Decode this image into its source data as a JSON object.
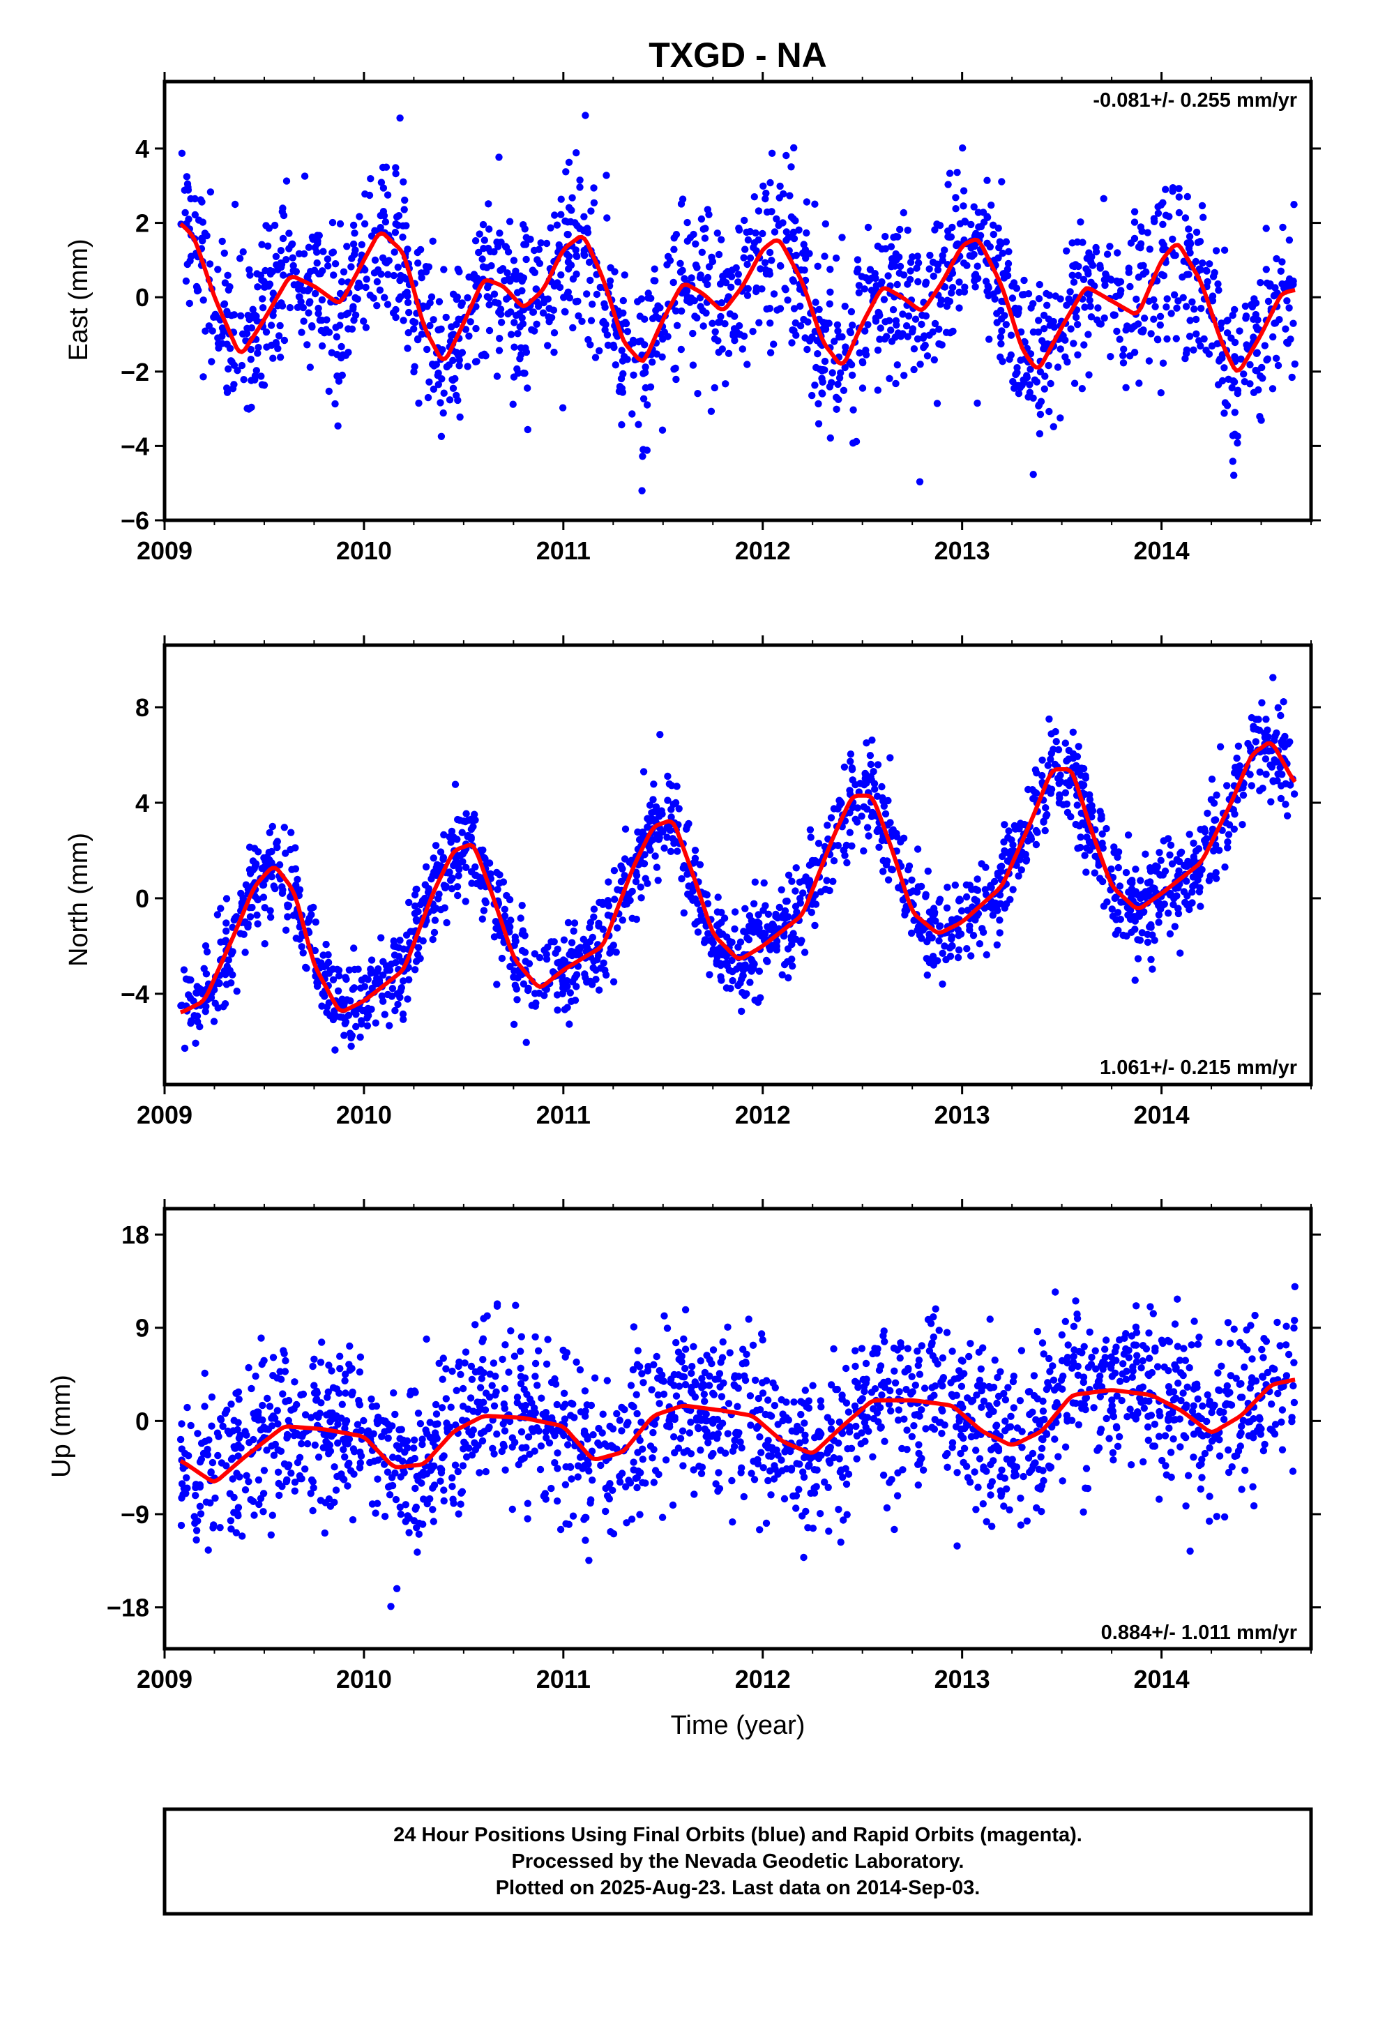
{
  "title": "TXGD - NA",
  "xlabel": "Time (year)",
  "footer": {
    "line1": "24 Hour Positions Using Final Orbits (blue) and Rapid Orbits (magenta).",
    "line2": "Processed by the Nevada Geodetic Laboratory.",
    "line3": "Plotted on 2025-Aug-23. Last data on 2014-Sep-03."
  },
  "colors": {
    "points": "#0000ff",
    "fit": "#ff0000",
    "frame": "#000000"
  },
  "chart_data": [
    {
      "type": "scatter",
      "ylabel": "East (mm)",
      "rate": "-0.081+/- 0.255 mm/yr",
      "rate_position": "top-right",
      "xlim": [
        2009.0,
        2014.75
      ],
      "ylim": [
        -6,
        5.8
      ],
      "x_ticks": [
        "2009",
        "2010",
        "2011",
        "2012",
        "2013",
        "2014"
      ],
      "y_ticks": [
        "−6",
        "−4",
        "−2",
        "0",
        "2",
        "4"
      ],
      "y_tick_values": [
        -6,
        -4,
        -2,
        0,
        2,
        4
      ],
      "series": [
        {
          "kind": "fit",
          "x": [
            2009.08,
            2009.15,
            2009.25,
            2009.38,
            2009.5,
            2009.63,
            2009.75,
            2009.88,
            2010.0,
            2010.08,
            2010.2,
            2010.3,
            2010.4,
            2010.5,
            2010.6,
            2010.7,
            2010.8,
            2010.9,
            2011.0,
            2011.1,
            2011.2,
            2011.3,
            2011.4,
            2011.5,
            2011.6,
            2011.7,
            2011.8,
            2011.9,
            2012.0,
            2012.08,
            2012.2,
            2012.3,
            2012.4,
            2012.5,
            2012.6,
            2012.7,
            2012.8,
            2012.9,
            2013.0,
            2013.08,
            2013.2,
            2013.3,
            2013.38,
            2013.5,
            2013.62,
            2013.75,
            2013.88,
            2014.0,
            2014.08,
            2014.2,
            2014.3,
            2014.38,
            2014.5,
            2014.6,
            2014.67
          ],
          "y": [
            2.0,
            1.6,
            0.0,
            -1.6,
            -0.6,
            0.6,
            0.3,
            -0.2,
            1.0,
            1.8,
            1.2,
            -0.8,
            -1.8,
            -0.7,
            0.5,
            0.3,
            -0.3,
            0.2,
            1.3,
            1.7,
            0.5,
            -1.2,
            -1.8,
            -0.6,
            0.4,
            0.1,
            -0.4,
            0.3,
            1.3,
            1.6,
            0.4,
            -1.2,
            -1.9,
            -0.7,
            0.3,
            0.0,
            -0.4,
            0.4,
            1.4,
            1.6,
            0.3,
            -1.4,
            -2.0,
            -0.8,
            0.3,
            -0.1,
            -0.5,
            1.0,
            1.5,
            0.4,
            -1.2,
            -2.1,
            -1.0,
            0.1,
            0.2
          ]
        }
      ],
      "points": {
        "count": 1900,
        "annual_amplitude": 1.6,
        "semiannual_amplitude": 0.9,
        "rate": -0.081,
        "scatter_mm": 1.1
      }
    },
    {
      "type": "scatter",
      "ylabel": "North (mm)",
      "rate": "1.061+/- 0.215 mm/yr",
      "rate_position": "bottom-right",
      "xlim": [
        2009.0,
        2014.75
      ],
      "ylim": [
        -7.8,
        10.6
      ],
      "x_ticks": [
        "2009",
        "2010",
        "2011",
        "2012",
        "2013",
        "2014"
      ],
      "y_ticks": [
        "−4",
        "0",
        "4",
        "8"
      ],
      "y_tick_values": [
        -4,
        0,
        4,
        8
      ],
      "series": [
        {
          "kind": "fit",
          "x": [
            2009.08,
            2009.2,
            2009.35,
            2009.45,
            2009.55,
            2009.65,
            2009.75,
            2009.88,
            2010.0,
            2010.2,
            2010.35,
            2010.45,
            2010.55,
            2010.65,
            2010.75,
            2010.88,
            2011.0,
            2011.2,
            2011.35,
            2011.45,
            2011.55,
            2011.65,
            2011.75,
            2011.88,
            2012.0,
            2012.2,
            2012.35,
            2012.45,
            2012.55,
            2012.65,
            2012.75,
            2012.88,
            2013.0,
            2013.2,
            2013.35,
            2013.45,
            2013.55,
            2013.65,
            2013.75,
            2013.88,
            2014.0,
            2014.2,
            2014.35,
            2014.45,
            2014.55,
            2014.67
          ],
          "y": [
            -4.8,
            -4.3,
            -1.5,
            0.5,
            1.4,
            0.3,
            -2.8,
            -4.8,
            -4.3,
            -3.0,
            0.3,
            2.0,
            2.3,
            0.0,
            -2.5,
            -3.8,
            -3.0,
            -2.0,
            1.3,
            3.0,
            3.3,
            1.0,
            -1.5,
            -2.6,
            -2.0,
            -0.7,
            2.5,
            4.3,
            4.3,
            2.0,
            -0.6,
            -1.5,
            -1.0,
            0.5,
            3.3,
            5.4,
            5.4,
            2.8,
            0.5,
            -0.5,
            0.2,
            1.5,
            4.0,
            6.0,
            6.6,
            4.8
          ]
        }
      ],
      "points": {
        "count": 1900,
        "annual_amplitude": 3.4,
        "rate": 1.061,
        "scatter_mm": 1.0
      }
    },
    {
      "type": "scatter",
      "ylabel": "Up (mm)",
      "rate": "0.884+/- 1.011 mm/yr",
      "rate_position": "bottom-right",
      "xlim": [
        2009.0,
        2014.75
      ],
      "ylim": [
        -22,
        20.5
      ],
      "x_ticks": [
        "2009",
        "2010",
        "2011",
        "2012",
        "2013",
        "2014"
      ],
      "y_ticks": [
        "−18",
        "−9",
        "0",
        "9",
        "18"
      ],
      "y_tick_values": [
        -18,
        -9,
        0,
        9,
        18
      ],
      "series": [
        {
          "kind": "fit",
          "x": [
            2009.08,
            2009.25,
            2009.4,
            2009.6,
            2009.8,
            2010.0,
            2010.15,
            2010.3,
            2010.45,
            2010.6,
            2010.8,
            2011.0,
            2011.15,
            2011.3,
            2011.45,
            2011.6,
            2011.8,
            2011.95,
            2012.1,
            2012.25,
            2012.4,
            2012.55,
            2012.75,
            2012.95,
            2013.1,
            2013.25,
            2013.4,
            2013.55,
            2013.75,
            2013.95,
            2014.1,
            2014.25,
            2014.4,
            2014.55,
            2014.67
          ],
          "y": [
            -3.8,
            -6.0,
            -3.5,
            -0.5,
            -0.8,
            -1.5,
            -4.5,
            -4.2,
            -1.0,
            0.5,
            0.3,
            -0.5,
            -3.8,
            -3.0,
            0.5,
            1.5,
            1.0,
            0.5,
            -2.0,
            -3.2,
            -0.5,
            2.0,
            2.0,
            1.5,
            -1.0,
            -2.4,
            -1.0,
            2.5,
            3.0,
            2.5,
            1.0,
            -1.2,
            0.5,
            3.5,
            4.0
          ]
        }
      ],
      "points": {
        "count": 1900,
        "annual_amplitude": 3.0,
        "rate": 0.884,
        "scatter_mm": 4.0
      }
    }
  ]
}
